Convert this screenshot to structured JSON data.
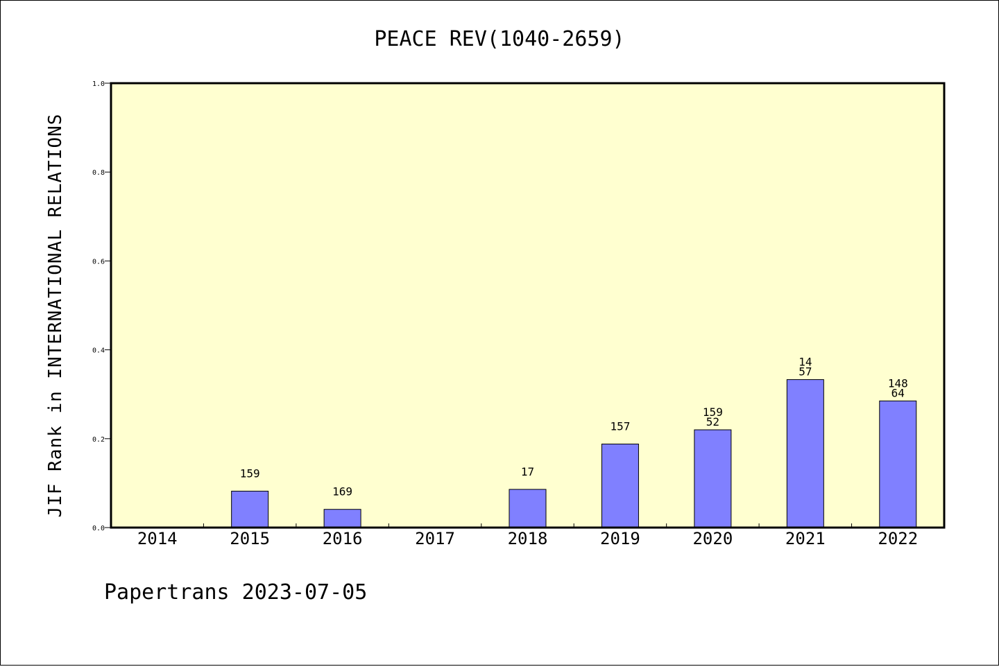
{
  "chart_data": {
    "type": "bar",
    "title": "PEACE REV(1040-2659)",
    "xlabel": "",
    "ylabel": "JIF Rank in INTERNATIONAL RELATIONS",
    "ylim": [
      0,
      1.0
    ],
    "yticks": [
      "0.0",
      "0.2",
      "0.4",
      "0.6",
      "0.8",
      "1.0"
    ],
    "categories": [
      "2014",
      "2015",
      "2016",
      "2017",
      "2018",
      "2019",
      "2020",
      "2021",
      "2022"
    ],
    "values": [
      null,
      0.082,
      0.041,
      null,
      0.086,
      0.188,
      0.22,
      0.333,
      0.285
    ],
    "bar_labels": [
      [],
      [
        "159"
      ],
      [
        "169"
      ],
      [],
      [
        "17"
      ],
      [
        "157"
      ],
      [
        "159",
        "52"
      ],
      [
        "14",
        "57"
      ],
      [
        "148",
        "64"
      ]
    ],
    "grid": false,
    "legend": "none"
  },
  "footer": "Papertrans 2023-07-05",
  "colors": {
    "plot_background": "#ffffd0",
    "bar_fill": "#8080ff",
    "bar_stroke": "#000000",
    "frame": "#000000"
  }
}
